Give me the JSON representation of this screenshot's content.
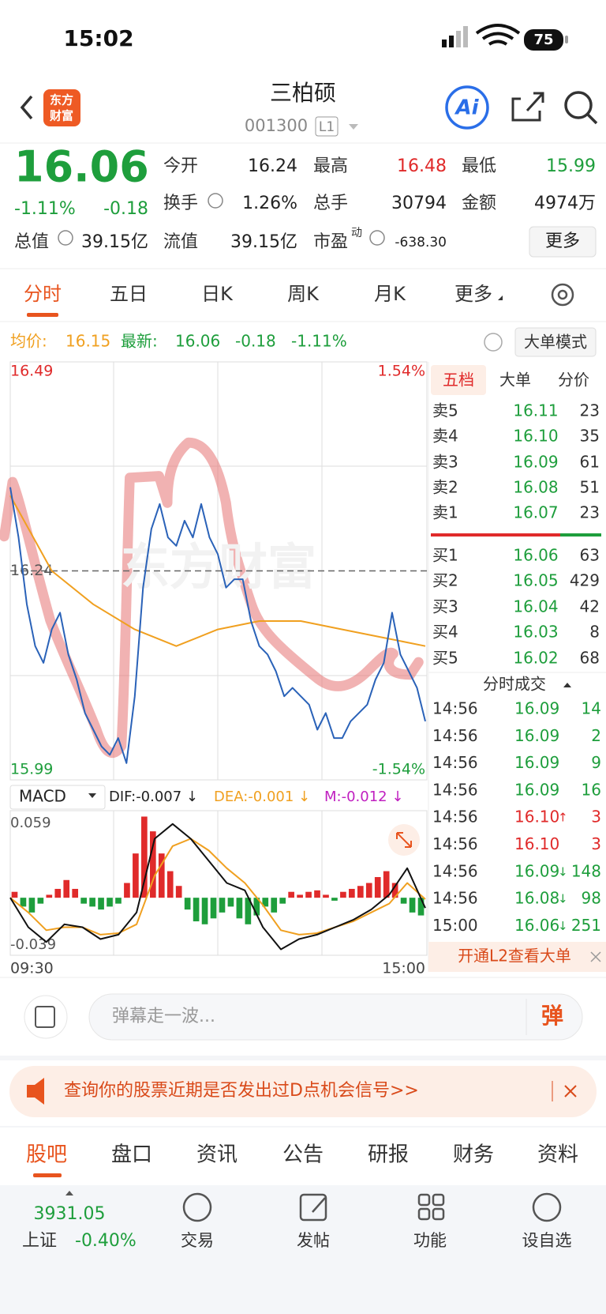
{
  "status_bar": {
    "time": "15:02",
    "battery": "75"
  },
  "header": {
    "logo": [
      "东方",
      "财富"
    ],
    "title": "三柏硕",
    "code": "001300",
    "level": "L1",
    "ai": "Ai"
  },
  "quote": {
    "price": "16.06",
    "change_pct": "-1.11%",
    "change": "-0.18",
    "stats": [
      {
        "label": "今开",
        "value": "16.24"
      },
      {
        "label": "最高",
        "value": "16.48",
        "color": "#e02a2a"
      },
      {
        "label": "最低",
        "value": "15.99",
        "color": "#1e9e3c"
      },
      {
        "label": "换手",
        "value": "1.26%"
      },
      {
        "label": "总手",
        "value": "30794"
      },
      {
        "label": "金额",
        "value": "4974万"
      },
      {
        "label": "总值",
        "value": "39.15亿"
      },
      {
        "label": "流值",
        "value": "39.15亿"
      },
      {
        "label": "市盈",
        "sup": "动",
        "value": "-638.30"
      }
    ],
    "more": "更多"
  },
  "tabs": [
    "分时",
    "五日",
    "日K",
    "周K",
    "月K",
    "更多"
  ],
  "info": {
    "avg_label": "均价:",
    "avg": "16.15",
    "last_label": "最新:",
    "last": "16.06",
    "change": "-0.18",
    "change_pct": "-1.11%",
    "mode": "大单模式"
  },
  "intraday": {
    "ylim": [
      15.99,
      16.49
    ],
    "ref": 16.24,
    "pct_top": "1.54%",
    "pct_bottom": "-1.54%",
    "watermark": "东方财富",
    "price": [
      16.34,
      16.28,
      16.2,
      16.15,
      16.13,
      16.17,
      16.19,
      16.14,
      16.11,
      16.07,
      16.05,
      16.03,
      16.02,
      16.04,
      16.01,
      16.09,
      16.22,
      16.29,
      16.32,
      16.28,
      16.27,
      16.3,
      16.28,
      16.32,
      16.28,
      16.26,
      16.22,
      16.23,
      16.23,
      16.18,
      16.15,
      16.14,
      16.12,
      16.09,
      16.1,
      16.09,
      16.08,
      16.05,
      16.07,
      16.04,
      16.04,
      16.06,
      16.07,
      16.08,
      16.11,
      16.13,
      16.19,
      16.14,
      16.12,
      16.1,
      16.06
    ],
    "avg": [
      16.33,
      16.24,
      16.2,
      16.17,
      16.15,
      16.17,
      16.18,
      16.18,
      16.17,
      16.16,
      16.15
    ]
  },
  "macd": {
    "name": "MACD",
    "dif_label": "DIF:-0.007 ↓",
    "dea_label": "DEA:-0.001 ↓",
    "m_label": "M:-0.012 ↓",
    "ylim": [
      -0.039,
      0.059
    ],
    "hist": [
      0.004,
      -0.006,
      -0.01,
      -0.004,
      0.002,
      0.006,
      0.012,
      0.006,
      -0.004,
      -0.006,
      -0.008,
      -0.006,
      -0.004,
      0.01,
      0.03,
      0.055,
      0.045,
      0.03,
      0.018,
      0.008,
      -0.008,
      -0.016,
      -0.018,
      -0.014,
      -0.01,
      -0.006,
      -0.014,
      -0.018,
      -0.012,
      -0.006,
      -0.01,
      -0.004,
      0.004,
      0.002,
      0.004,
      0.005,
      0.002,
      -0.002,
      0.004,
      0.006,
      0.008,
      0.01,
      0.014,
      0.018,
      0.01,
      -0.004,
      -0.01,
      -0.012
    ],
    "dif": [
      0.0,
      -0.02,
      -0.03,
      -0.018,
      -0.02,
      -0.028,
      -0.025,
      -0.01,
      0.04,
      0.05,
      0.04,
      0.025,
      0.01,
      0.005,
      -0.02,
      -0.035,
      -0.028,
      -0.025,
      -0.02,
      -0.015,
      -0.008,
      0.002,
      0.02,
      -0.007
    ],
    "dea": [
      0.0,
      -0.01,
      -0.022,
      -0.02,
      -0.02,
      -0.025,
      -0.024,
      -0.018,
      0.015,
      0.035,
      0.04,
      0.032,
      0.02,
      0.01,
      -0.005,
      -0.022,
      -0.025,
      -0.024,
      -0.02,
      -0.016,
      -0.01,
      -0.004,
      0.01,
      -0.001
    ],
    "time_start": "09:30",
    "time_end": "15:00"
  },
  "order_book": {
    "tabs": [
      "五档",
      "大单",
      "分价"
    ],
    "sell": [
      {
        "label": "卖5",
        "price": "16.11",
        "volume": "23"
      },
      {
        "label": "卖4",
        "price": "16.10",
        "volume": "35"
      },
      {
        "label": "卖3",
        "price": "16.09",
        "volume": "61"
      },
      {
        "label": "卖2",
        "price": "16.08",
        "volume": "51"
      },
      {
        "label": "卖1",
        "price": "16.07",
        "volume": "23"
      }
    ],
    "buy": [
      {
        "label": "买1",
        "price": "16.06",
        "volume": "63"
      },
      {
        "label": "买2",
        "price": "16.05",
        "volume": "429"
      },
      {
        "label": "买3",
        "price": "16.04",
        "volume": "42"
      },
      {
        "label": "买4",
        "price": "16.03",
        "volume": "8"
      },
      {
        "label": "买5",
        "price": "16.02",
        "volume": "68"
      }
    ],
    "trades_title": "分时成交",
    "trades": [
      {
        "time": "14:56",
        "price": "16.09",
        "volume": "14",
        "color": "#1e9e3c"
      },
      {
        "time": "14:56",
        "price": "16.09",
        "volume": "2",
        "color": "#1e9e3c"
      },
      {
        "time": "14:56",
        "price": "16.09",
        "volume": "9",
        "color": "#1e9e3c"
      },
      {
        "time": "14:56",
        "price": "16.09",
        "volume": "16",
        "color": "#1e9e3c"
      },
      {
        "time": "14:56",
        "price": "16.10",
        "arrow": "↑",
        "volume": "3",
        "color": "#e02a2a"
      },
      {
        "time": "14:56",
        "price": "16.10",
        "volume": "3",
        "color": "#e02a2a"
      },
      {
        "time": "14:56",
        "price": "16.09",
        "arrow": "↓",
        "volume": "148",
        "color": "#1e9e3c"
      },
      {
        "time": "14:56",
        "price": "16.08",
        "arrow": "↓",
        "volume": "98",
        "color": "#1e9e3c"
      },
      {
        "time": "15:00",
        "price": "16.06",
        "arrow": "↓",
        "volume": "251",
        "color": "#1e9e3c"
      }
    ],
    "l2": "开通L2查看大单"
  },
  "comment": {
    "placeholder": "弹幕走一波...",
    "button": "弹"
  },
  "banner": {
    "text": "查询你的股票近期是否发出过D点机会信号>>"
  },
  "bottom_tabs": [
    "股吧",
    "盘口",
    "资讯",
    "公告",
    "研报",
    "财务",
    "资料"
  ],
  "nav": {
    "index_value": "3931.05",
    "index_name": "上证",
    "index_change": "-0.40%",
    "items": [
      "交易",
      "发帖",
      "功能",
      "设自选"
    ]
  }
}
